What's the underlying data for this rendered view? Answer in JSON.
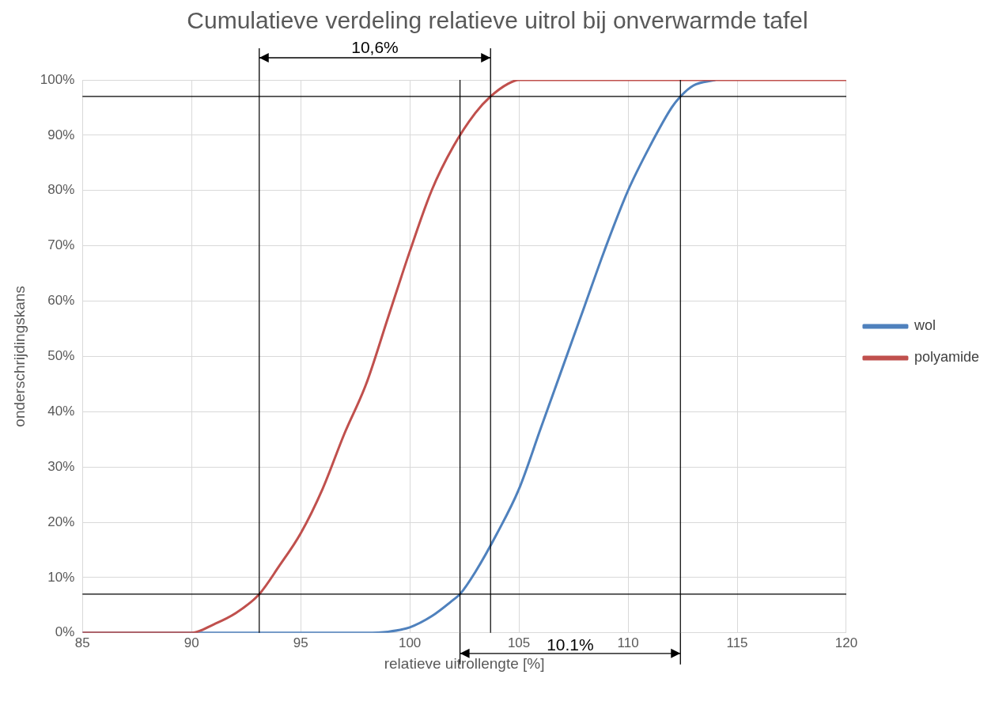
{
  "chart_data": {
    "type": "line",
    "title": "Cumulatieve verdeling relatieve uitrol bij onverwarmde tafel",
    "xlabel": "relatieve uitrollengte [%]",
    "ylabel": "onderschrijdingskans",
    "xlim": [
      85,
      120
    ],
    "xticks": [
      85,
      90,
      95,
      100,
      105,
      110,
      115,
      120
    ],
    "ylim": [
      0,
      100
    ],
    "yticks": [
      {
        "value": 0,
        "label": "0%"
      },
      {
        "value": 10,
        "label": "10%"
      },
      {
        "value": 20,
        "label": "20%"
      },
      {
        "value": 30,
        "label": "30%"
      },
      {
        "value": 40,
        "label": "40%"
      },
      {
        "value": 50,
        "label": "50%"
      },
      {
        "value": 60,
        "label": "60%"
      },
      {
        "value": 70,
        "label": "70%"
      },
      {
        "value": 80,
        "label": "80%"
      },
      {
        "value": 90,
        "label": "90%"
      },
      {
        "value": 100,
        "label": "100%"
      }
    ],
    "grid": true,
    "legend": "right",
    "marker": "none",
    "line_style": "solid",
    "series": [
      {
        "name": "wol",
        "color": "#4f81bd",
        "x": [
          85,
          98,
          99,
          100,
          101,
          102,
          102.3,
          103,
          104,
          105,
          106,
          107,
          108,
          109,
          110,
          111,
          112,
          112.4,
          113,
          114
        ],
        "values": [
          0,
          0,
          0.2,
          1,
          3,
          6,
          7,
          11,
          18,
          26,
          37,
          48,
          59,
          70,
          80,
          88,
          95,
          97,
          99,
          100
        ]
      },
      {
        "name": "polyamide",
        "color": "#c0504d",
        "x": [
          85,
          90,
          91,
          92,
          93.1,
          94,
          95,
          96,
          97,
          98,
          99,
          100,
          101,
          102,
          103,
          103.7,
          104.5,
          105,
          120
        ],
        "values": [
          0,
          0,
          1.5,
          3.5,
          7,
          12,
          18,
          26,
          36,
          45,
          57,
          69,
          80,
          88,
          94,
          97,
          99.3,
          100,
          100
        ]
      }
    ],
    "ref_lines": [
      {
        "axis": "x",
        "value": 93.1,
        "color": "#000000"
      },
      {
        "axis": "x",
        "value": 103.7,
        "color": "#000000"
      },
      {
        "axis": "x",
        "value": 102.3,
        "color": "#000000"
      },
      {
        "axis": "x",
        "value": 112.4,
        "color": "#000000"
      },
      {
        "axis": "y",
        "value": 7,
        "color": "#000000"
      },
      {
        "axis": "y",
        "value": 97,
        "color": "#000000"
      }
    ],
    "annotations": [
      "10,6%",
      "10.1%"
    ]
  }
}
